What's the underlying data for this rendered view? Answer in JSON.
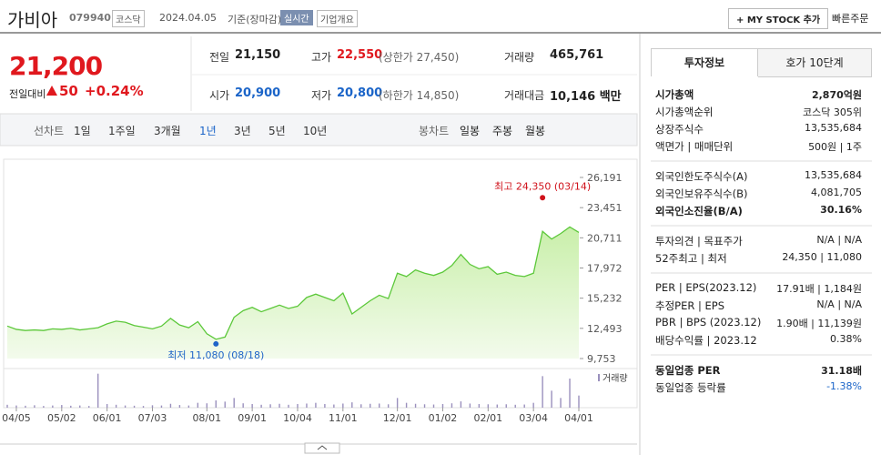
{
  "header": {
    "name": "가비아",
    "code": "079940",
    "market": "코스닥",
    "date": "2024.04.05",
    "basis": "기준(장마감)",
    "realtime": "실시간",
    "overview": "기업개요",
    "mystock": "+ MY STOCK 추가",
    "quick_order": "빠른주문"
  },
  "price": {
    "current": "21,200",
    "change_label": "전일대비",
    "change": "50",
    "rate": "+0.24%",
    "color": "#e0181e"
  },
  "quote": {
    "rows": [
      [
        {
          "label": "전일",
          "value": "21,150"
        },
        {
          "label": "고가",
          "value": "22,550",
          "extra": "(상한가 27,450)",
          "color": "#e0181e"
        },
        {
          "label": "거래량",
          "value": "465,761"
        }
      ],
      [
        {
          "label": "시가",
          "value": "20,900",
          "color": "#1a64c8"
        },
        {
          "label": "저가",
          "value": "20,800",
          "extra": "(하한가 14,850)",
          "color": "#1a64c8"
        },
        {
          "label": "거래대금",
          "value": "10,146 백만"
        }
      ]
    ]
  },
  "periods": {
    "line_label": "선차트",
    "line": [
      "1일",
      "1주일",
      "3개월",
      "1년",
      "3년",
      "5년",
      "10년"
    ],
    "selected": 3,
    "candle_label": "봉차트",
    "candle": [
      "일봉",
      "주봉",
      "월봉"
    ]
  },
  "side": {
    "tabs": [
      "투자정보",
      "호가 10단계"
    ],
    "groups": [
      [
        {
          "label": "시가총액",
          "value": "2,870억원",
          "bold": true
        },
        {
          "label": "시가총액순위",
          "value": "코스닥 305위"
        },
        {
          "label": "상장주식수",
          "value": "13,535,684"
        },
        {
          "label": "액면가 | 매매단위",
          "value": "500원 | 1주"
        }
      ],
      [
        {
          "label": "외국인한도주식수(A)",
          "value": "13,535,684"
        },
        {
          "label": "외국인보유주식수(B)",
          "value": "4,081,705"
        },
        {
          "label": "외국인소진율(B/A)",
          "value": "30.16%",
          "bold": true
        }
      ],
      [
        {
          "label": "투자의견 | 목표주가",
          "value": "N/A | N/A"
        },
        {
          "label": "52주최고 | 최저",
          "value": "24,350 | 11,080"
        }
      ],
      [
        {
          "label": "PER | EPS(2023.12)",
          "value": "17.91배 | 1,184원"
        },
        {
          "label": "추정PER | EPS",
          "value": "N/A | N/A"
        },
        {
          "label": "PBR | BPS (2023.12)",
          "value": "1.90배 | 11,139원"
        },
        {
          "label": "배당수익률 | 2023.12",
          "value": "0.38%"
        }
      ],
      [
        {
          "label": "동일업종 PER",
          "value": "31.18배",
          "bold": true
        },
        {
          "label": "동일업종 등락률",
          "value": "-1.38%",
          "color": "#1a64c8"
        }
      ]
    ]
  },
  "chart_data": {
    "type": "line",
    "categories": [
      null,
      "04/05",
      null,
      null,
      null,
      null,
      "05/02",
      null,
      null,
      null,
      null,
      "06/01",
      null,
      null,
      null,
      null,
      "07/03",
      null,
      null,
      null,
      null,
      null,
      "08/01",
      null,
      null,
      null,
      null,
      "09/01",
      null,
      null,
      null,
      null,
      "10/04",
      null,
      null,
      null,
      null,
      "11/01",
      null,
      null,
      null,
      null,
      null,
      "12/01",
      null,
      null,
      null,
      null,
      "01/02",
      null,
      null,
      null,
      null,
      "02/01",
      null,
      null,
      null,
      null,
      "03/04",
      null,
      null,
      null,
      null,
      "04/01"
    ],
    "series": [
      {
        "color": "#5cc83a",
        "values": [
          12700,
          12400,
          12300,
          12350,
          12300,
          12450,
          12400,
          12500,
          12350,
          12450,
          12550,
          12900,
          13150,
          13050,
          12750,
          12600,
          12450,
          12700,
          13400,
          12800,
          12550,
          13100,
          12000,
          11500,
          11700,
          13500,
          14100,
          14400,
          14000,
          14300,
          14600,
          14300,
          14500,
          15300,
          15600,
          15300,
          15000,
          15700,
          13800,
          14400,
          15000,
          15500,
          15200,
          17500,
          17200,
          17800,
          17500,
          17300,
          17600,
          18200,
          19200,
          18300,
          17900,
          18100,
          17400,
          17600,
          17300,
          17200,
          17500,
          21300,
          20600,
          21100,
          21700,
          21200
        ]
      }
    ],
    "ylim": [
      9753,
      26191
    ],
    "yticks": [
      {
        "value": 9753,
        "label": "9,753"
      },
      {
        "value": 12493,
        "label": "12,493"
      },
      {
        "value": 15232,
        "label": "15,232"
      },
      {
        "value": 17972,
        "label": "17,972"
      },
      {
        "value": 20711,
        "label": "20,711"
      },
      {
        "value": 23451,
        "label": "23,451"
      },
      {
        "value": 26191,
        "label": "26,191"
      }
    ],
    "grid": false,
    "annotations": [
      {
        "text": "최고 24,350 (03/14)",
        "index": 59,
        "value": 24350,
        "color": "#d0121b"
      },
      {
        "text": "최저 11,080 (08/18)",
        "index": 23,
        "value": 11080,
        "color": "#1f64c8"
      }
    ],
    "volume": {
      "name": "거래량",
      "color": "#9a90bd",
      "values": [
        120000,
        90000,
        80000,
        100000,
        70000,
        90000,
        110000,
        80000,
        90000,
        70000,
        1400000,
        150000,
        120000,
        90000,
        80000,
        70000,
        100000,
        90000,
        160000,
        110000,
        90000,
        200000,
        180000,
        300000,
        250000,
        400000,
        180000,
        150000,
        120000,
        140000,
        160000,
        120000,
        150000,
        170000,
        200000,
        150000,
        130000,
        170000,
        220000,
        140000,
        160000,
        170000,
        140000,
        400000,
        200000,
        160000,
        140000,
        130000,
        150000,
        180000,
        260000,
        170000,
        150000,
        140000,
        130000,
        140000,
        120000,
        130000,
        200000,
        1300000,
        700000,
        400000,
        1200000,
        500000
      ]
    },
    "vlim": [
      0,
      1500000
    ]
  }
}
